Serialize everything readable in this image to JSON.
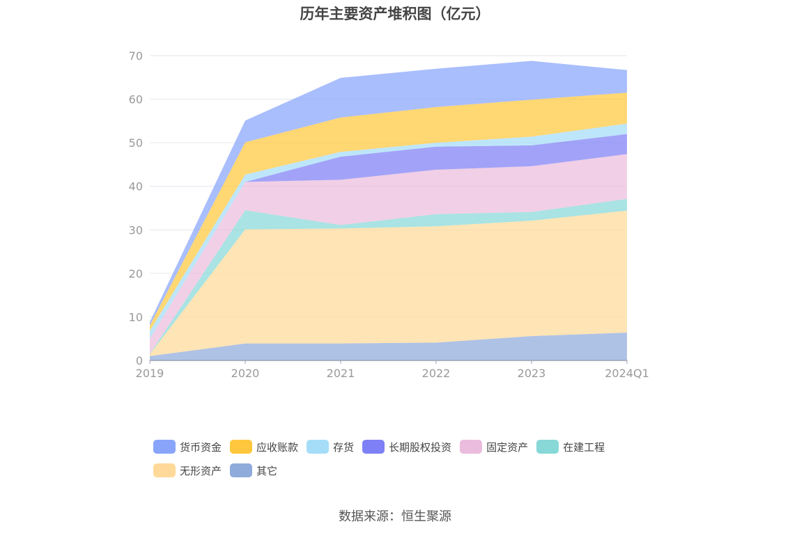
{
  "chart_data": {
    "type": "area",
    "stacked": true,
    "title": "历年主要资产堆积图（亿元）",
    "categories": [
      "2019",
      "2020",
      "2021",
      "2022",
      "2023",
      "2024Q1"
    ],
    "ylim": [
      0,
      70
    ],
    "yticks": [
      0,
      10,
      20,
      30,
      40,
      50,
      60,
      70
    ],
    "grid": true,
    "legend_position": "bottom",
    "series": [
      {
        "name": "其它",
        "color": "#8fabdc",
        "values": [
          1.0,
          3.9,
          3.9,
          4.1,
          5.6,
          6.4
        ]
      },
      {
        "name": "无形资产",
        "color": "#ffd999",
        "values": [
          0.4,
          26.2,
          26.4,
          26.7,
          26.5,
          28.0
        ]
      },
      {
        "name": "在建工程",
        "color": "#88d8d8",
        "values": [
          0.1,
          4.4,
          0.8,
          2.8,
          2.0,
          2.7
        ]
      },
      {
        "name": "固定资产",
        "color": "#ebbcdd",
        "values": [
          3.5,
          6.5,
          10.4,
          10.2,
          10.5,
          10.3
        ]
      },
      {
        "name": "长期股权投资",
        "color": "#7e80f5",
        "values": [
          0.0,
          0.0,
          5.3,
          5.3,
          4.8,
          4.6
        ]
      },
      {
        "name": "存货",
        "color": "#a5ddf8",
        "values": [
          1.8,
          1.7,
          1.1,
          0.9,
          2.0,
          2.4
        ]
      },
      {
        "name": "应收账款",
        "color": "#ffc73d",
        "values": [
          1.2,
          7.4,
          7.9,
          8.2,
          8.5,
          7.1
        ]
      },
      {
        "name": "货币资金",
        "color": "#88a5fb",
        "values": [
          0.8,
          5.0,
          9.1,
          8.8,
          8.9,
          5.2
        ]
      }
    ]
  },
  "legend": [
    {
      "label": "货币资金",
      "color": "#88a5fb"
    },
    {
      "label": "应收账款",
      "color": "#ffc73d"
    },
    {
      "label": "存货",
      "color": "#a5ddf8"
    },
    {
      "label": "长期股权投资",
      "color": "#7e80f5"
    },
    {
      "label": "固定资产",
      "color": "#ebbcdd"
    },
    {
      "label": "在建工程",
      "color": "#88d8d8"
    },
    {
      "label": "无形资产",
      "color": "#ffd999"
    },
    {
      "label": "其它",
      "color": "#8fabdc"
    }
  ],
  "source": "数据来源：恒生聚源"
}
